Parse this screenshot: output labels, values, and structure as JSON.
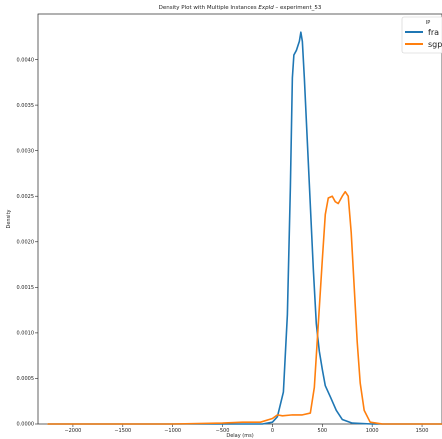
{
  "chart_data": {
    "type": "line",
    "title_parts": [
      "Density Plot with Multiple Instances ",
      "ExpId",
      " – experiment_53"
    ],
    "xlabel": "Delay (ms)",
    "ylabel": "Density",
    "xlim": [
      -2350,
      1700
    ],
    "ylim": [
      0,
      0.0045
    ],
    "x_ticks": [
      -2000,
      -1500,
      -1000,
      -500,
      0,
      500,
      1000,
      1500
    ],
    "x_tick_labels": [
      "−2000",
      "−1500",
      "−1000",
      "−500",
      "0",
      "500",
      "1000",
      "1500"
    ],
    "y_ticks": [
      0,
      0.0005,
      0.001,
      0.0015,
      0.002,
      0.0025,
      0.003,
      0.0035,
      0.004
    ],
    "y_tick_labels": [
      "0.0000",
      "0.0005",
      "0.0010",
      "0.0015",
      "0.0020",
      "0.0025",
      "0.0030",
      "0.0035",
      "0.0040"
    ],
    "grid": false,
    "legend": {
      "title": "IP",
      "placement": "top-right"
    },
    "series": [
      {
        "name": "fra",
        "color": "#1f77b4",
        "points": [
          [
            -2250,
            0
          ],
          [
            -1500,
            0
          ],
          [
            -500,
            0
          ],
          [
            -100,
            0
          ],
          [
            0,
            2e-05
          ],
          [
            50,
            8e-05
          ],
          [
            110,
            0.00035
          ],
          [
            150,
            0.0012
          ],
          [
            180,
            0.0026
          ],
          [
            200,
            0.0038
          ],
          [
            215,
            0.00405
          ],
          [
            240,
            0.0041
          ],
          [
            255,
            0.00415
          ],
          [
            270,
            0.0042
          ],
          [
            285,
            0.0043
          ],
          [
            300,
            0.0042
          ],
          [
            320,
            0.0038
          ],
          [
            350,
            0.0031
          ],
          [
            380,
            0.0024
          ],
          [
            410,
            0.0017
          ],
          [
            440,
            0.0011
          ],
          [
            470,
            0.0008
          ],
          [
            500,
            0.0006
          ],
          [
            530,
            0.00042
          ],
          [
            580,
            0.0003
          ],
          [
            640,
            0.00015
          ],
          [
            700,
            5e-05
          ],
          [
            800,
            1e-05
          ],
          [
            1000,
            0
          ],
          [
            1700,
            0
          ]
        ]
      },
      {
        "name": "sgp",
        "color": "#ff7f0e",
        "points": [
          [
            -2250,
            0
          ],
          [
            -1000,
            0
          ],
          [
            -500,
            1e-05
          ],
          [
            -300,
            2e-05
          ],
          [
            -120,
            2e-05
          ],
          [
            0,
            6e-05
          ],
          [
            50,
            0.0001
          ],
          [
            100,
            9e-05
          ],
          [
            200,
            0.0001
          ],
          [
            300,
            0.0001
          ],
          [
            380,
            0.00012
          ],
          [
            420,
            0.0004
          ],
          [
            460,
            0.0011
          ],
          [
            500,
            0.0018
          ],
          [
            530,
            0.0023
          ],
          [
            560,
            0.00248
          ],
          [
            600,
            0.0025
          ],
          [
            630,
            0.00244
          ],
          [
            660,
            0.00242
          ],
          [
            700,
            0.0025
          ],
          [
            730,
            0.00255
          ],
          [
            760,
            0.0025
          ],
          [
            790,
            0.0021
          ],
          [
            820,
            0.0015
          ],
          [
            850,
            0.0009
          ],
          [
            880,
            0.00045
          ],
          [
            920,
            0.00015
          ],
          [
            980,
            2e-05
          ],
          [
            1100,
            0
          ],
          [
            1700,
            0
          ]
        ]
      }
    ]
  }
}
